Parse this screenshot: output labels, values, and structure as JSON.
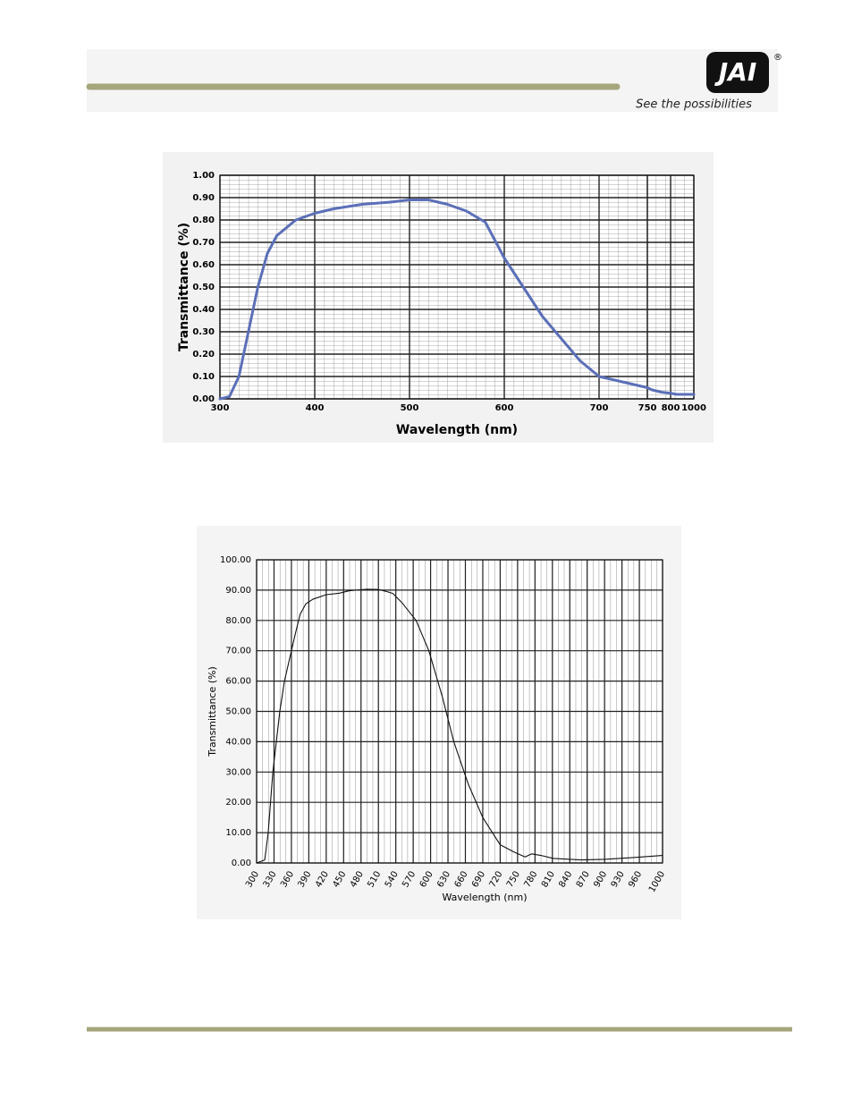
{
  "header": {
    "logo": "JAI",
    "logo_mark": "®",
    "tagline": "See the possibilities"
  },
  "chart_data": [
    {
      "type": "line",
      "ylabel": "Transmittance (%)",
      "xlabel": "Wavelength (nm)",
      "x": [
        300,
        310,
        320,
        330,
        340,
        350,
        360,
        380,
        400,
        420,
        450,
        480,
        500,
        520,
        540,
        560,
        580,
        600,
        620,
        640,
        660,
        680,
        700,
        720,
        740,
        750,
        760,
        780,
        800,
        850,
        900,
        1000
      ],
      "values": [
        0,
        0.01,
        0.1,
        0.3,
        0.5,
        0.65,
        0.73,
        0.8,
        0.83,
        0.85,
        0.87,
        0.88,
        0.89,
        0.89,
        0.87,
        0.84,
        0.79,
        0.63,
        0.5,
        0.37,
        0.27,
        0.17,
        0.1,
        0.08,
        0.06,
        0.05,
        0.04,
        0.03,
        0.025,
        0.02,
        0.02,
        0.02
      ],
      "color": "#5b6fb8",
      "xlim": [
        300,
        1000
      ],
      "xticks": [
        300,
        400,
        500,
        600,
        700,
        750,
        800,
        1000
      ],
      "ylim": [
        0,
        1
      ],
      "yticks": [
        {
          "value": 0,
          "label": "0.00"
        },
        {
          "value": 0.1,
          "label": "0.10"
        },
        {
          "value": 0.2,
          "label": "0.20"
        },
        {
          "value": 0.3,
          "label": "0.30"
        },
        {
          "value": 0.4,
          "label": "0.40"
        },
        {
          "value": 0.5,
          "label": "0.50"
        },
        {
          "value": 0.6,
          "label": "0.60"
        },
        {
          "value": 0.7,
          "label": "0.70"
        },
        {
          "value": 0.8,
          "label": "0.80"
        },
        {
          "value": 0.9,
          "label": "0.90"
        },
        {
          "value": 1,
          "label": "1.00"
        }
      ],
      "grid": true
    },
    {
      "type": "line",
      "ylabel": "Transmittance (%)",
      "xlabel": "Wavelength (nm)",
      "x": [
        300,
        314,
        320,
        328,
        340,
        348,
        360,
        366,
        375,
        385,
        397,
        420,
        443,
        460,
        490,
        510,
        525,
        535,
        550,
        575,
        597,
        620,
        640,
        665,
        690,
        720,
        745,
        763,
        774,
        790,
        812,
        860,
        900,
        950,
        1000
      ],
      "values": [
        0,
        1,
        10,
        30,
        50,
        60,
        70,
        75,
        82,
        85.5,
        87,
        88.5,
        89,
        89.8,
        90.3,
        90.2,
        89.5,
        88.9,
        86,
        80,
        70,
        55,
        40,
        26,
        15,
        6,
        3.5,
        2,
        3,
        2.5,
        1.5,
        1,
        1.2,
        1.8,
        2.5
      ],
      "color": "#111111",
      "xlim": [
        300,
        1000
      ],
      "xticks": [
        300,
        330,
        360,
        390,
        420,
        450,
        480,
        510,
        540,
        570,
        600,
        630,
        660,
        690,
        720,
        750,
        780,
        810,
        840,
        870,
        900,
        930,
        960,
        1000
      ],
      "ylim": [
        0,
        100
      ],
      "yticks": [
        {
          "value": 0,
          "label": "0.00"
        },
        {
          "value": 10,
          "label": "10.00"
        },
        {
          "value": 20,
          "label": "20.00"
        },
        {
          "value": 30,
          "label": "30.00"
        },
        {
          "value": 40,
          "label": "40.00"
        },
        {
          "value": 50,
          "label": "50.00"
        },
        {
          "value": 60,
          "label": "60.00"
        },
        {
          "value": 70,
          "label": "70.00"
        },
        {
          "value": 80,
          "label": "80.00"
        },
        {
          "value": 90,
          "label": "90.00"
        },
        {
          "value": 100,
          "label": "100.00"
        }
      ],
      "grid": true
    }
  ]
}
